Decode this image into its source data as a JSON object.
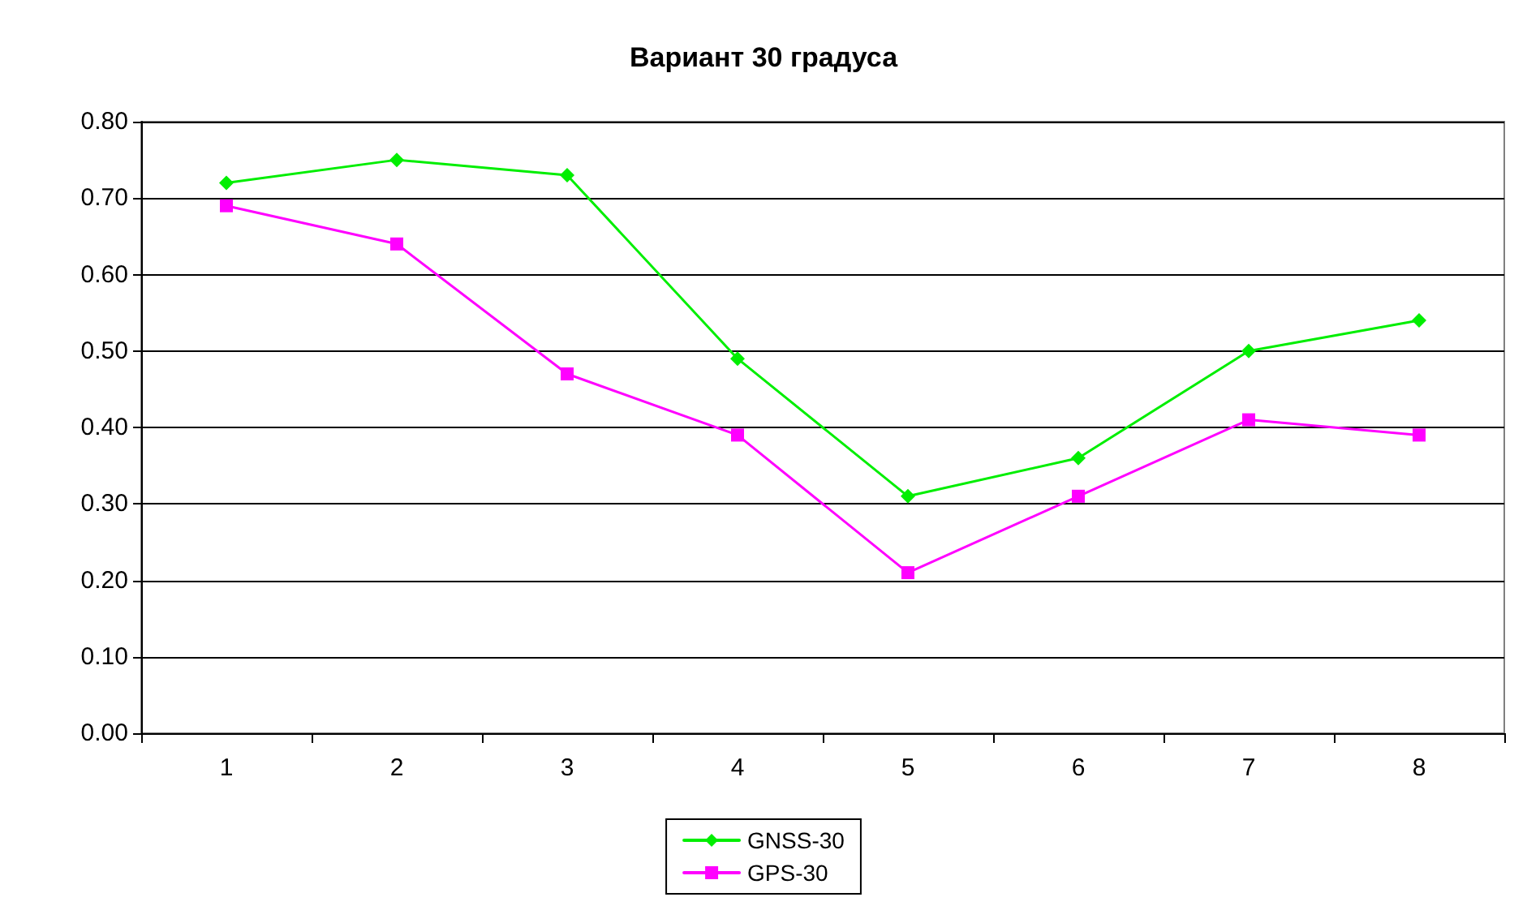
{
  "chart_data": {
    "type": "line",
    "title": "Вариант 30 градуса",
    "categories": [
      "1",
      "2",
      "3",
      "4",
      "5",
      "6",
      "7",
      "8"
    ],
    "series": [
      {
        "name": "GNSS-30",
        "color": "#00ee00",
        "marker": "diamond",
        "values": [
          0.72,
          0.75,
          0.73,
          0.49,
          0.31,
          0.36,
          0.5,
          0.54
        ]
      },
      {
        "name": "GPS-30",
        "color": "#ff00ff",
        "marker": "square",
        "values": [
          0.69,
          0.64,
          0.47,
          0.39,
          0.21,
          0.31,
          0.41,
          0.39
        ]
      }
    ],
    "ylim": [
      0,
      0.8
    ],
    "yticks": [
      {
        "value": 0,
        "label": "0.00"
      },
      {
        "value": 0.1,
        "label": "0.10"
      },
      {
        "value": 0.2,
        "label": "0.20"
      },
      {
        "value": 0.3,
        "label": "0.30"
      },
      {
        "value": 0.4,
        "label": "0.40"
      },
      {
        "value": 0.5,
        "label": "0.50"
      },
      {
        "value": 0.6,
        "label": "0.60"
      },
      {
        "value": 0.7,
        "label": "0.70"
      },
      {
        "value": 0.8,
        "label": "0.80"
      }
    ],
    "grid": "y",
    "legend": "bottom",
    "line_style": "solid"
  }
}
